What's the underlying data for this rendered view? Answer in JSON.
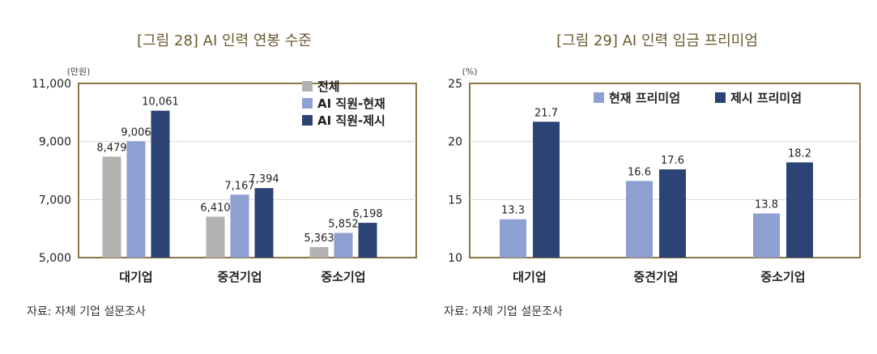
{
  "chart_data": [
    {
      "type": "bar",
      "title": "[그림 28] AI 인력 연봉 수준",
      "unit": "(만원)",
      "categories": [
        "대기업",
        "중견기업",
        "중소기업"
      ],
      "series": [
        {
          "name": "전체",
          "values": [
            8479,
            6410,
            5363
          ],
          "labels": [
            "8,479",
            "6,410",
            "5,363"
          ],
          "color": "#b2b2b2"
        },
        {
          "name": "AI 직원-현재",
          "values": [
            9006,
            7167,
            5852
          ],
          "labels": [
            "9,006",
            "7,167",
            "5,852"
          ],
          "color": "#8e9fd1"
        },
        {
          "name": "AI 직원-제시",
          "values": [
            10061,
            7394,
            6198
          ],
          "labels": [
            "10,061",
            "7,394",
            "6,198"
          ],
          "color": "#2b4375"
        }
      ],
      "yticks": [
        "5,000",
        "7,000",
        "9,000",
        "11,000"
      ],
      "ytick_values": [
        5000,
        7000,
        9000,
        11000
      ],
      "ylim": [
        5000,
        11000
      ],
      "grid": true,
      "legend": "top-right",
      "source": "자료: 자체 기업 설문조사"
    },
    {
      "type": "bar",
      "title": "[그림 29] AI 인력 임금 프리미엄",
      "unit": "(%)",
      "categories": [
        "대기업",
        "중견기업",
        "중소기업"
      ],
      "series": [
        {
          "name": "현재 프리미엄",
          "values": [
            13.3,
            16.6,
            13.8
          ],
          "labels": [
            "13.3",
            "16.6",
            "13.8"
          ],
          "color": "#8e9fd1"
        },
        {
          "name": "제시 프리미엄",
          "values": [
            21.7,
            17.6,
            18.2
          ],
          "labels": [
            "21.7",
            "17.6",
            "18.2"
          ],
          "color": "#2b4375"
        }
      ],
      "yticks": [
        "10",
        "15",
        "20",
        "25"
      ],
      "ytick_values": [
        10,
        15,
        20,
        25
      ],
      "ylim": [
        10,
        25
      ],
      "grid": true,
      "legend": "top",
      "source": "자료: 자체 기업 설문조사"
    }
  ]
}
